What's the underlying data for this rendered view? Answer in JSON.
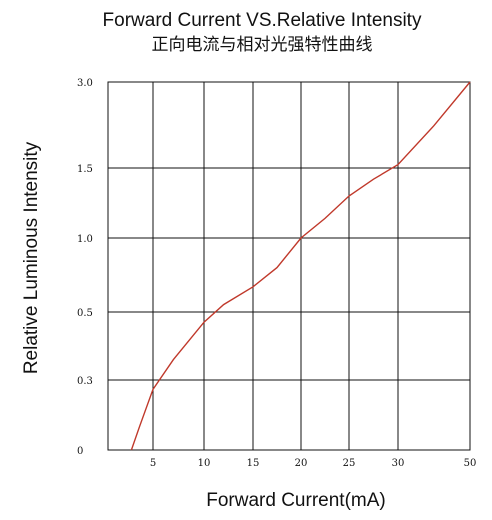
{
  "chart_data": {
    "type": "line",
    "title": "Forward Current VS.Relative Intensity",
    "subtitle": "正向电流与相对光强特性曲线",
    "xlabel": "Forward Current(mA)",
    "ylabel": "Relative Luminous Intensity",
    "x_ticks": [
      "5",
      "10",
      "15",
      "20",
      "25",
      "30",
      "50"
    ],
    "y_ticks": [
      "0",
      "0.3",
      "0.5",
      "1.0",
      "1.5",
      "3.0"
    ],
    "grid": true,
    "series": [
      {
        "color": "#c0392b",
        "x": [
          2.6,
          3.5,
          5,
          7,
          10,
          12,
          15,
          17.5,
          20,
          22.5,
          25,
          27.5,
          30,
          40,
          50
        ],
        "y": [
          0,
          0.1,
          0.26,
          0.36,
          0.47,
          0.55,
          0.67,
          0.8,
          1.0,
          1.14,
          1.3,
          1.42,
          1.56,
          2.24,
          3.0
        ]
      }
    ]
  }
}
